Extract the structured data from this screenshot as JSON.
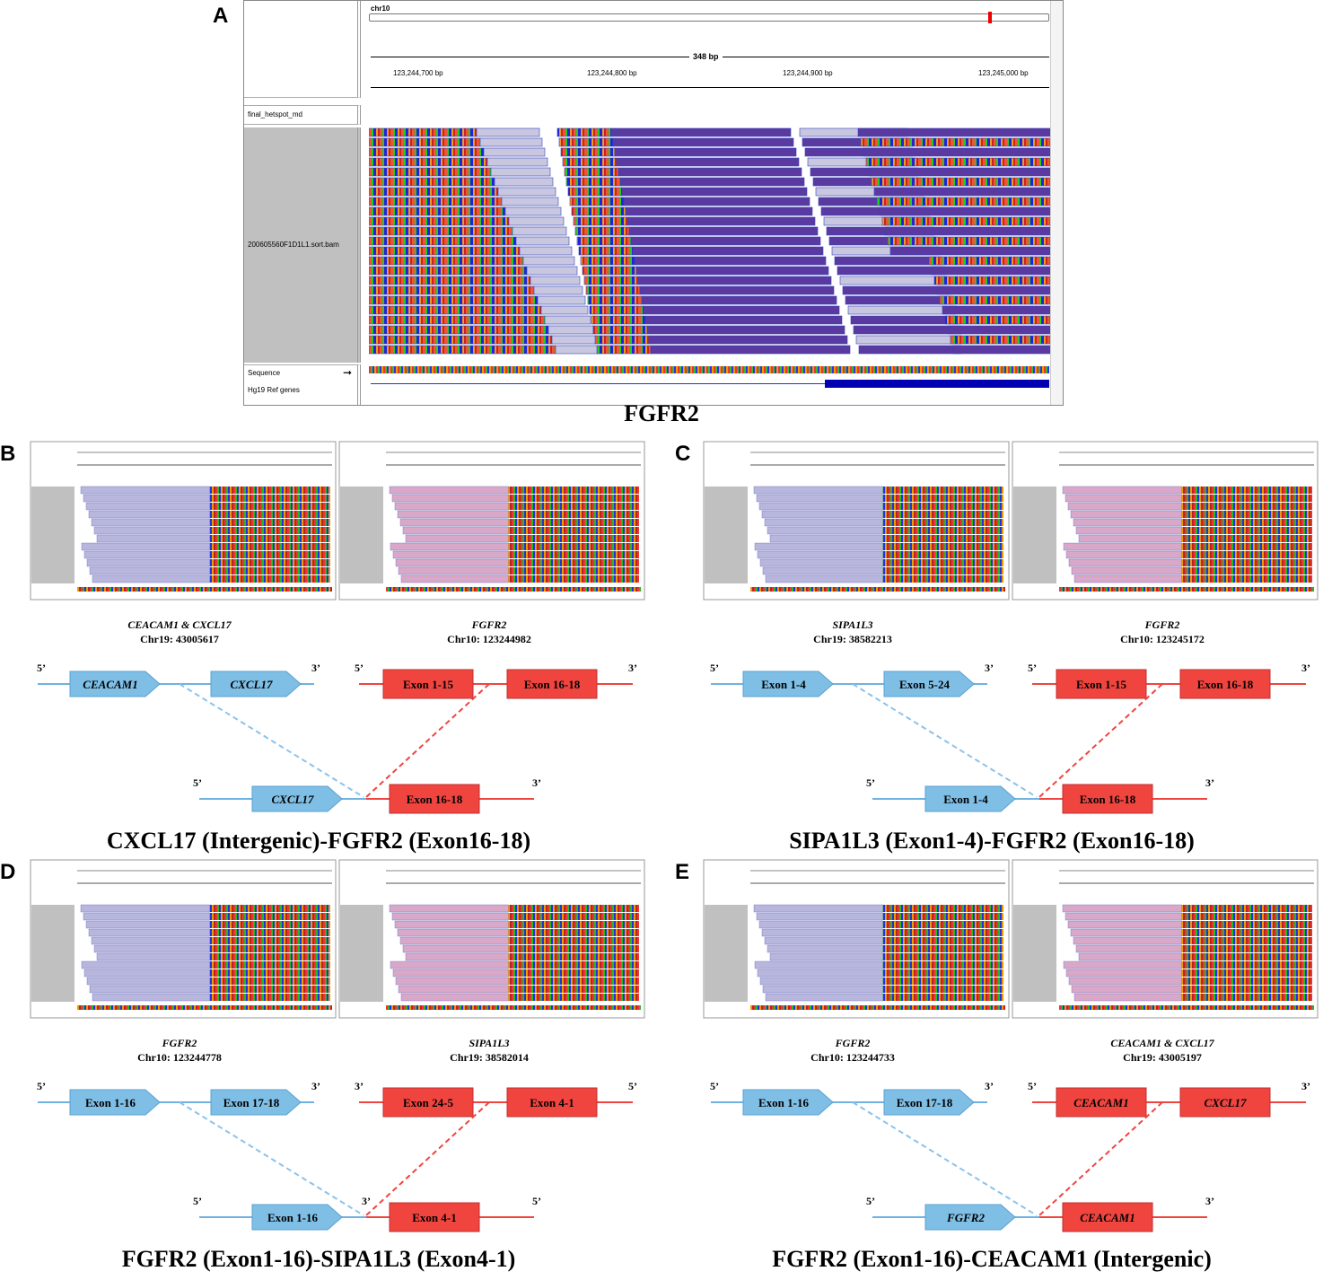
{
  "panel_a": {
    "label": "A",
    "chrom": "chr10",
    "span": "348 bp",
    "ticks": [
      "123,244,700 bp",
      "123,244,800 bp",
      "123,244,900 bp",
      "123,245,000 bp"
    ],
    "track_names": [
      "final_hetspot_md",
      "200605560F1D1L1.sort.bam",
      "Sequence",
      "Hg19 Ref genes"
    ],
    "gene_title": "FGFR2"
  },
  "panels": [
    {
      "label": "B",
      "left_gene": "CEACAM1 & CXCL17",
      "left_pos": "Chr19: 43005617",
      "right_gene": "FGFR2",
      "right_pos": "Chr10: 123244982",
      "top_left": [
        "CEACAM1",
        "CXCL17"
      ],
      "top_right": [
        "Exon 1-15",
        "Exon 16-18"
      ],
      "top_left_ends": [
        "5’",
        "3’"
      ],
      "top_right_ends": [
        "5’",
        "3’"
      ],
      "fusion": [
        "CXCL17",
        "Exon 16-18"
      ],
      "fusion_ends": [
        "5’",
        "3’"
      ],
      "title": "CXCL17 (Intergenic)-FGFR2 (Exon16-18)"
    },
    {
      "label": "C",
      "left_gene": "SIPA1L3",
      "left_pos": "Chr19: 38582213",
      "right_gene": "FGFR2",
      "right_pos": "Chr10: 123245172",
      "top_left": [
        "Exon 1-4",
        "Exon 5-24"
      ],
      "top_right": [
        "Exon 1-15",
        "Exon 16-18"
      ],
      "top_left_ends": [
        "5’",
        "3’"
      ],
      "top_right_ends": [
        "5’",
        "3’"
      ],
      "fusion": [
        "Exon 1-4",
        "Exon 16-18"
      ],
      "fusion_ends": [
        "5’",
        "3’"
      ],
      "title": "SIPA1L3 (Exon1-4)-FGFR2 (Exon16-18)"
    },
    {
      "label": "D",
      "left_gene": "FGFR2",
      "left_pos": "Chr10: 123244778",
      "right_gene": "SIPA1L3",
      "right_pos": "Chr19: 38582014",
      "top_left": [
        "Exon 1-16",
        "Exon 17-18"
      ],
      "top_right": [
        "Exon 24-5",
        "Exon 4-1"
      ],
      "top_left_ends": [
        "5’",
        "3’"
      ],
      "top_right_ends": [
        "3’",
        "5’"
      ],
      "fusion": [
        "Exon 1-16",
        "Exon 4-1"
      ],
      "fusion_ends": [
        "5’",
        "3’",
        "5’"
      ],
      "title": "FGFR2 (Exon1-16)-SIPA1L3 (Exon4-1)"
    },
    {
      "label": "E",
      "left_gene": "FGFR2",
      "left_pos": "Chr10: 123244733",
      "right_gene": "CEACAM1 & CXCL17",
      "right_pos": "Chr19: 43005197",
      "top_left": [
        "Exon 1-16",
        "Exon 17-18"
      ],
      "top_right": [
        "CEACAM1",
        "CXCL17"
      ],
      "top_left_ends": [
        "5’",
        "3’"
      ],
      "top_right_ends": [
        "5’",
        "3’"
      ],
      "fusion": [
        "FGFR2",
        "CEACAM1"
      ],
      "fusion_ends": [
        "5’",
        "3’"
      ],
      "title": "FGFR2 (Exon1-16)-CEACAM1 (Intergenic)"
    }
  ],
  "colors": {
    "blue_gene": "#7fbfe6",
    "red_gene": "#f0453f",
    "read_purple": "#5a3aa0",
    "read_light": "#c9c7e0"
  }
}
